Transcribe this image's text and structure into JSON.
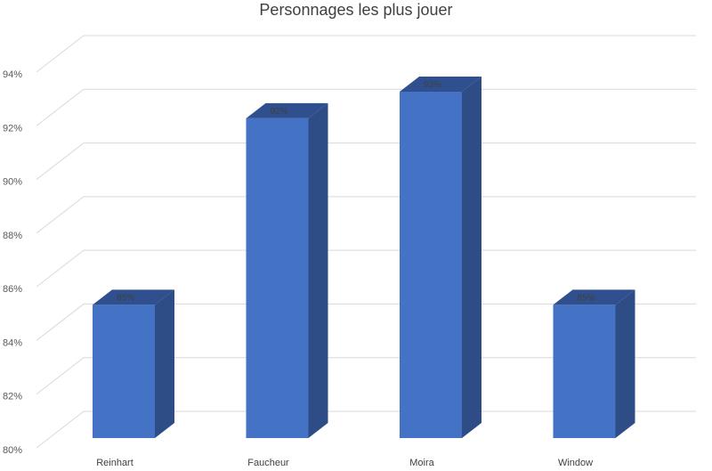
{
  "chart_data": {
    "type": "bar",
    "title": "Personnages les plus jouer",
    "categories": [
      "Reinhart",
      "Faucheur",
      "Moira",
      "Window"
    ],
    "values": [
      85,
      92,
      93,
      85
    ],
    "data_labels": [
      "85%",
      "92%",
      "93%",
      "85%"
    ],
    "ylim": [
      80,
      94
    ],
    "yticks": [
      80,
      82,
      84,
      86,
      88,
      90,
      92,
      94
    ],
    "ytick_labels": [
      "80%",
      "82%",
      "84%",
      "86%",
      "88%",
      "90%",
      "92%",
      "94%"
    ],
    "grid": true,
    "legend": "none",
    "style": "3d-column",
    "colors": {
      "front": "#4472C4",
      "side": "#2E4C85",
      "top": "#2F4F8E",
      "grid": "#D9D9D9"
    }
  }
}
